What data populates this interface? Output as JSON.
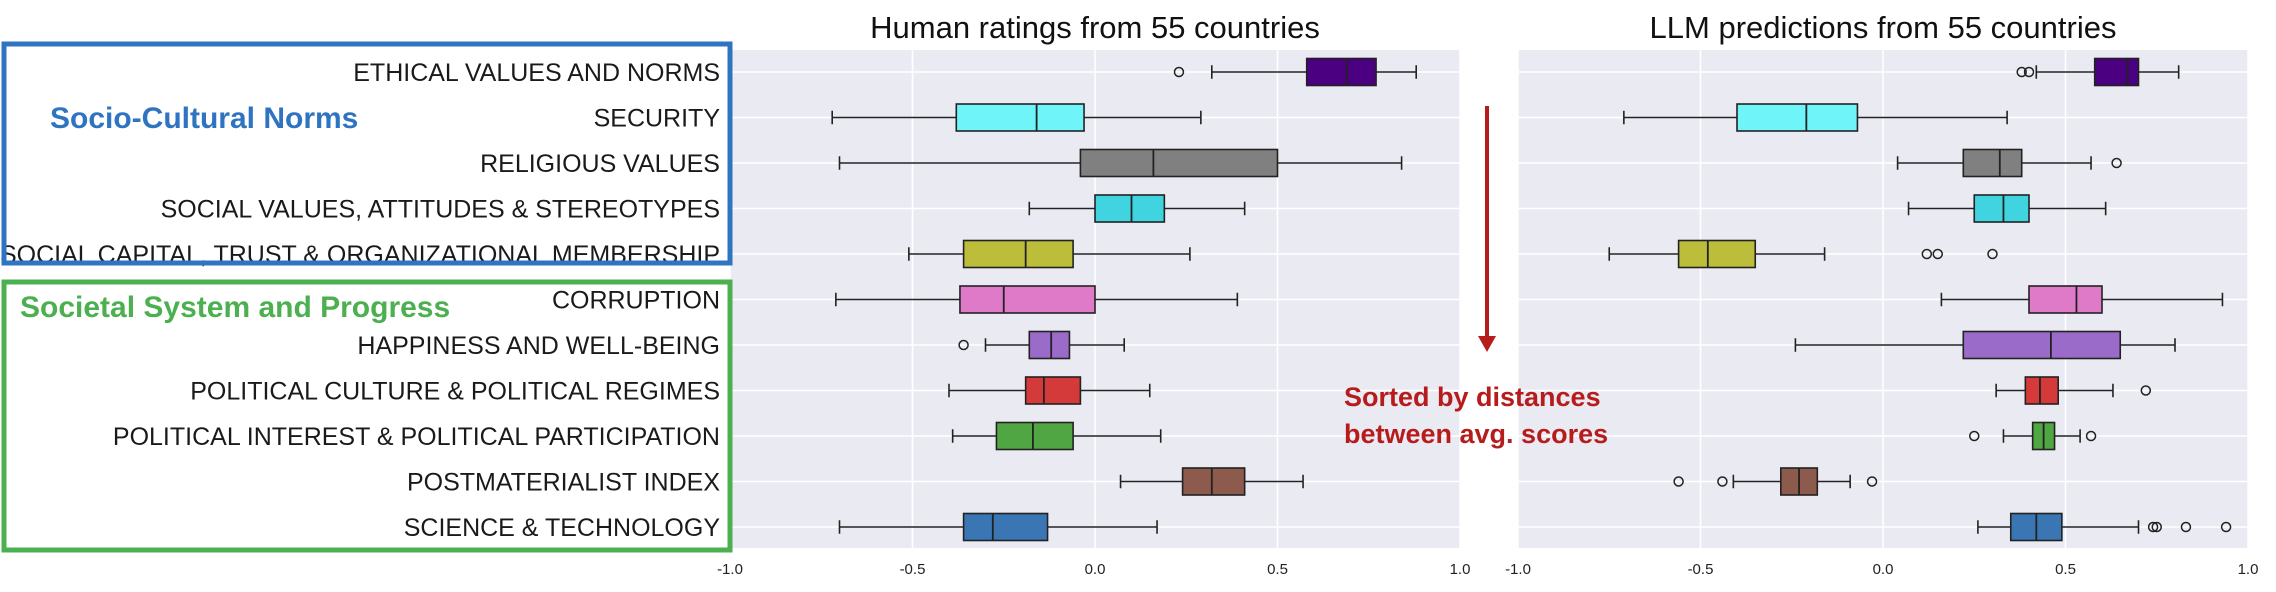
{
  "chart_data": {
    "type": "boxplot",
    "orientation": "horizontal",
    "categories": [
      "ETHICAL VALUES AND NORMS",
      "SECURITY",
      "RELIGIOUS VALUES",
      "SOCIAL VALUES, ATTITUDES & STEREOTYPES",
      "SOCIAL CAPITAL, TRUST & ORGANIZATIONAL MEMBERSHIP",
      "CORRUPTION",
      "HAPPINESS AND WELL-BEING",
      "POLITICAL CULTURE & POLITICAL REGIMES",
      "POLITICAL INTEREST & POLITICAL PARTICIPATION",
      "POSTMATERIALIST INDEX",
      "SCIENCE & TECHNOLOGY"
    ],
    "colors": [
      "#4b0082",
      "#6ef4f9",
      "#808080",
      "#40d4e0",
      "#bdbd3c",
      "#de7ac8",
      "#9b6bc9",
      "#d43a3a",
      "#4fa642",
      "#8c5b4e",
      "#3a76b4"
    ],
    "xlim": [
      -1.0,
      1.0
    ],
    "xticks": [
      "-1.0",
      "-0.5",
      "0.0",
      "0.5",
      "1.0"
    ],
    "panels": [
      {
        "title": "Human ratings from 55 countries",
        "boxes": [
          {
            "whislo": 0.32,
            "q1": 0.58,
            "med": 0.69,
            "q3": 0.77,
            "whishi": 0.88,
            "fliers": [
              0.23
            ]
          },
          {
            "whislo": -0.72,
            "q1": -0.38,
            "med": -0.16,
            "q3": -0.03,
            "whishi": 0.29,
            "fliers": []
          },
          {
            "whislo": -0.7,
            "q1": -0.04,
            "med": 0.16,
            "q3": 0.5,
            "whishi": 0.84,
            "fliers": []
          },
          {
            "whislo": -0.18,
            "q1": 0.0,
            "med": 0.1,
            "q3": 0.19,
            "whishi": 0.41,
            "fliers": []
          },
          {
            "whislo": -0.51,
            "q1": -0.36,
            "med": -0.19,
            "q3": -0.06,
            "whishi": 0.26,
            "fliers": []
          },
          {
            "whislo": -0.71,
            "q1": -0.37,
            "med": -0.25,
            "q3": 0.0,
            "whishi": 0.39,
            "fliers": []
          },
          {
            "whislo": -0.3,
            "q1": -0.18,
            "med": -0.12,
            "q3": -0.07,
            "whishi": 0.08,
            "fliers": [
              -0.36
            ]
          },
          {
            "whislo": -0.4,
            "q1": -0.19,
            "med": -0.14,
            "q3": -0.04,
            "whishi": 0.15,
            "fliers": []
          },
          {
            "whislo": -0.39,
            "q1": -0.27,
            "med": -0.17,
            "q3": -0.06,
            "whishi": 0.18,
            "fliers": []
          },
          {
            "whislo": 0.07,
            "q1": 0.24,
            "med": 0.32,
            "q3": 0.41,
            "whishi": 0.57,
            "fliers": []
          },
          {
            "whislo": -0.7,
            "q1": -0.36,
            "med": -0.28,
            "q3": -0.13,
            "whishi": 0.17,
            "fliers": []
          }
        ]
      },
      {
        "title": "LLM predictions from 55 countries",
        "boxes": [
          {
            "whislo": 0.42,
            "q1": 0.58,
            "med": 0.67,
            "q3": 0.7,
            "whishi": 0.81,
            "fliers": [
              0.38,
              0.4
            ]
          },
          {
            "whislo": -0.71,
            "q1": -0.4,
            "med": -0.21,
            "q3": -0.07,
            "whishi": 0.34,
            "fliers": []
          },
          {
            "whislo": 0.04,
            "q1": 0.22,
            "med": 0.32,
            "q3": 0.38,
            "whishi": 0.57,
            "fliers": [
              0.64
            ]
          },
          {
            "whislo": 0.07,
            "q1": 0.25,
            "med": 0.33,
            "q3": 0.4,
            "whishi": 0.61,
            "fliers": []
          },
          {
            "whislo": -0.75,
            "q1": -0.56,
            "med": -0.48,
            "q3": -0.35,
            "whishi": -0.16,
            "fliers": [
              0.12,
              0.15,
              0.3
            ]
          },
          {
            "whislo": 0.16,
            "q1": 0.4,
            "med": 0.53,
            "q3": 0.6,
            "whishi": 0.93,
            "fliers": []
          },
          {
            "whislo": -0.24,
            "q1": 0.22,
            "med": 0.46,
            "q3": 0.65,
            "whishi": 0.8,
            "fliers": []
          },
          {
            "whislo": 0.31,
            "q1": 0.39,
            "med": 0.43,
            "q3": 0.48,
            "whishi": 0.63,
            "fliers": [
              0.72
            ]
          },
          {
            "whislo": 0.33,
            "q1": 0.41,
            "med": 0.44,
            "q3": 0.47,
            "whishi": 0.54,
            "fliers": [
              0.25,
              0.57
            ]
          },
          {
            "whislo": -0.41,
            "q1": -0.28,
            "med": -0.23,
            "q3": -0.18,
            "whishi": -0.09,
            "fliers": [
              -0.56,
              -0.44,
              -0.03
            ]
          },
          {
            "whislo": 0.26,
            "q1": 0.35,
            "med": 0.42,
            "q3": 0.49,
            "whishi": 0.7,
            "fliers": [
              0.74,
              0.75,
              0.83,
              0.94
            ]
          }
        ]
      }
    ],
    "groups": [
      {
        "label": "Socio-Cultural Norms",
        "color": "#2e74c0"
      },
      {
        "label": "Societal System and Progress",
        "color": "#4caf50"
      }
    ],
    "annotation": {
      "line1": "Sorted by distances",
      "line2": "between avg. scores",
      "color": "#b71c1c"
    }
  }
}
